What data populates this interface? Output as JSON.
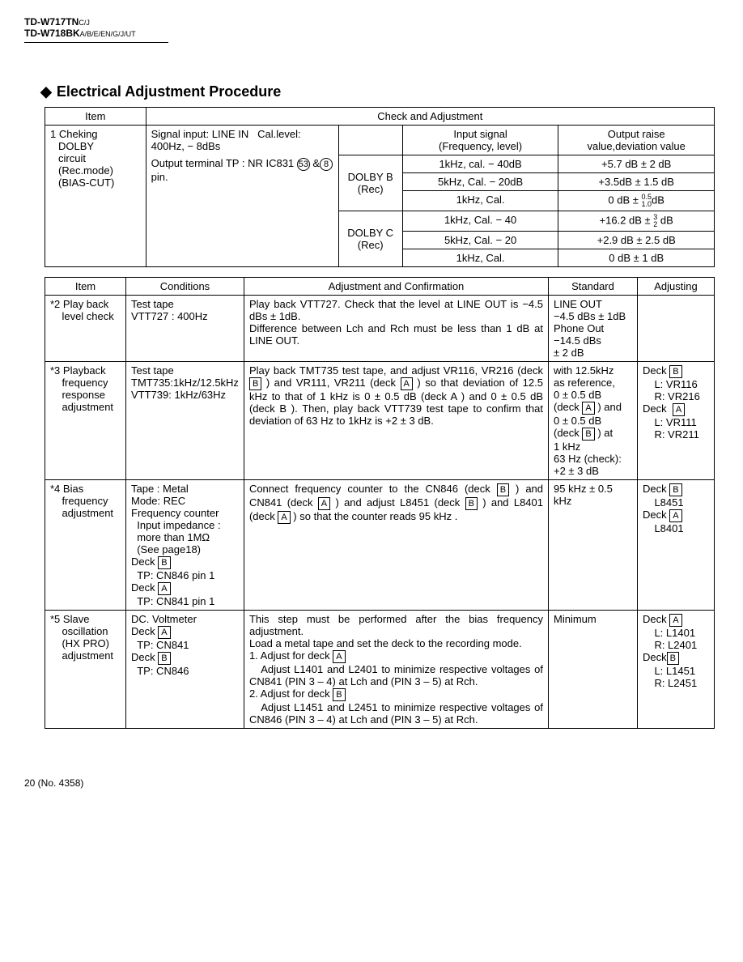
{
  "header": {
    "model1": "TD-W717TN",
    "model1_suffix": "C/J",
    "model2": "TD-W718BK",
    "model2_suffix": "A/B/E/EN/G/J/UT"
  },
  "section_title": "Electrical Adjustment Procedure",
  "table1": {
    "h_item": "Item",
    "h_check": "Check and Adjustment",
    "h_input": "Input signal\n(Frequency, level)",
    "h_output": "Output raise\nvalue,deviation value",
    "item_lines": [
      "1 Cheking",
      "DOLBY",
      "circuit",
      "(Rec.mode)",
      "(BIAS-CUT)"
    ],
    "signal": "Signal input: LINE IN   Cal.level: 400Hz, − 8dBs",
    "output_terminal": "Output terminal TP : NR IC831",
    "output_terminal_pins": [
      "53",
      "8"
    ],
    "output_terminal_after": "pin.",
    "dolby_b": "DOLBY B\n(Rec)",
    "dolby_c": "DOLBY C\n(Rec)",
    "rows_b": [
      {
        "freq": "1kHz, cal. − 40dB",
        "out": "+5.7 dB ± 2 dB"
      },
      {
        "freq": "5kHz, Cal. − 20dB",
        "out": "+3.5dB ± 1.5 dB"
      },
      {
        "freq": "1kHz, Cal.",
        "out_pre": "0 dB ± ",
        "out_top": "0.5",
        "out_bot": "1.0",
        "out_post": "dB"
      }
    ],
    "rows_c": [
      {
        "freq": "1kHz, Cal. − 40",
        "out_pre": "+16.2 dB ± ",
        "out_top": "3",
        "out_bot": "2",
        "out_post": " dB"
      },
      {
        "freq": "5kHz, Cal. − 20",
        "out": "+2.9 dB ± 2.5 dB"
      },
      {
        "freq": "1kHz, Cal.",
        "out": "0 dB ± 1 dB"
      }
    ]
  },
  "table2": {
    "h_item": "Item",
    "h_cond": "Conditions",
    "h_adj": "Adjustment and Confirmation",
    "h_std": "Standard",
    "h_adjusting": "Adjusting",
    "rows": [
      {
        "item": "*2 Play back\n    level check",
        "cond": "Test tape\nVTT727 : 400Hz",
        "adj": "Play back VTT727. Check that the level at LINE OUT is −4.5 dBs   ± 1dB.\nDifference between Lch and Rch must be less than 1 dB at LINE OUT.",
        "std": "LINE OUT\n−4.5 dBs ± 1dB\nPhone Out\n−14.5 dBs\n± 2 dB",
        "adjusting": ""
      },
      {
        "item": "*3 Playback\n    frequency\n    response\n    adjustment",
        "cond": "Test tape\nTMT735:1kHz/12.5kHz\nVTT739: 1kHz/63Hz",
        "adj_html": "Play back TMT735 test tape, and adjust VR116, VR216 (deck <span class='boxed'>B</span> ) and VR111, VR211 (deck <span class='boxed'>A</span> ) so that deviation of 12.5 kHz to that of 1 kHz is 0 ± 0.5 dB (deck  A  ) and 0 ± 0.5 dB (deck  B  ). Then, play back VTT739 test tape to confirm that deviation of 63 Hz to 1kHz is +2  ± 3 dB.",
        "std_html": "with 12.5kHz<br>as reference,<br>0 ± 0.5 dB<br>(deck <span class='boxed'>A</span> ) and<br>0 ± 0.5 dB<br>(deck <span class='boxed'>B</span> ) at<br>1 kHz<br>63 Hz (check):<br>+2 ± 3 dB",
        "adjusting_html": "Deck <span class='boxed'>B</span><br>&nbsp;&nbsp;&nbsp;&nbsp;L: VR116<br>&nbsp;&nbsp;&nbsp;&nbsp;R: VR216<br>Deck &nbsp;<span class='boxed'>A</span><br>&nbsp;&nbsp;&nbsp;&nbsp;L: VR111<br>&nbsp;&nbsp;&nbsp;&nbsp;R: VR211"
      },
      {
        "item": "*4 Bias\n    frequency\n    adjustment",
        "cond_html": "Tape :   Metal<br>Mode:   REC<br>Frequency counter<br>&nbsp;&nbsp;Input impedance :<br>&nbsp;&nbsp;more than 1MΩ<br>&nbsp;&nbsp;(See page18)<br>Deck <span class='boxed'>B</span><br>&nbsp;&nbsp;TP: CN846 pin 1<br>Deck <span class='boxed'>A</span><br>&nbsp;&nbsp;TP: CN841 pin 1",
        "adj_html": "Connect frequency counter to the CN846 (deck <span class='boxed'>B</span> ) and CN841 (deck <span class='boxed'>A</span> ) and adjust L8451 (deck  <span class='boxed'>B</span> ) and L8401 (deck <span class='boxed'>A</span> ) so that the counter reads 95 kHz .",
        "std": "95 kHz ± 0.5 kHz",
        "adjusting_html": "Deck <span class='boxed'>B</span><br>&nbsp;&nbsp;&nbsp;&nbsp;L8451<br>Deck <span class='boxed'>A</span><br>&nbsp;&nbsp;&nbsp;&nbsp;L8401"
      },
      {
        "item": "*5 Slave\n    oscillation\n    (HX PRO)\n    adjustment",
        "cond_html": "DC. Voltmeter<br>Deck <span class='boxed'>A</span><br>&nbsp;&nbsp;TP: CN841<br>Deck <span class='boxed'>B</span><br>&nbsp;&nbsp;TP: CN846",
        "adj_html": "This step must be performed after the bias frequency adjustment.<br>Load a metal tape and set the deck to the recording mode.<br>1. Adjust for deck <span class='boxed'>A</span><br>&nbsp;&nbsp;&nbsp;Adjust L1401 and L2401 to minimize respective voltages of CN841 (PIN 3 – 4) at Lch and (PIN 3 – 5) at Rch.<br>2. Adjust for deck <span class='boxed'>B</span><br>&nbsp;&nbsp;&nbsp;Adjust L1451 and L2451 to minimize respective voltages of CN846 (PIN 3 – 4) at Lch and (PIN 3 – 5) at Rch.",
        "std": "Minimum",
        "adjusting_html": "Deck <span class='boxed'>A</span><br>&nbsp;&nbsp;&nbsp;&nbsp;L: L1401<br>&nbsp;&nbsp;&nbsp;&nbsp;R: L2401<br>Deck<span class='boxed'>B</span><br>&nbsp;&nbsp;&nbsp;&nbsp;L: L1451<br>&nbsp;&nbsp;&nbsp;&nbsp;R: L2451"
      }
    ]
  },
  "page": "20 (No. 4358)"
}
